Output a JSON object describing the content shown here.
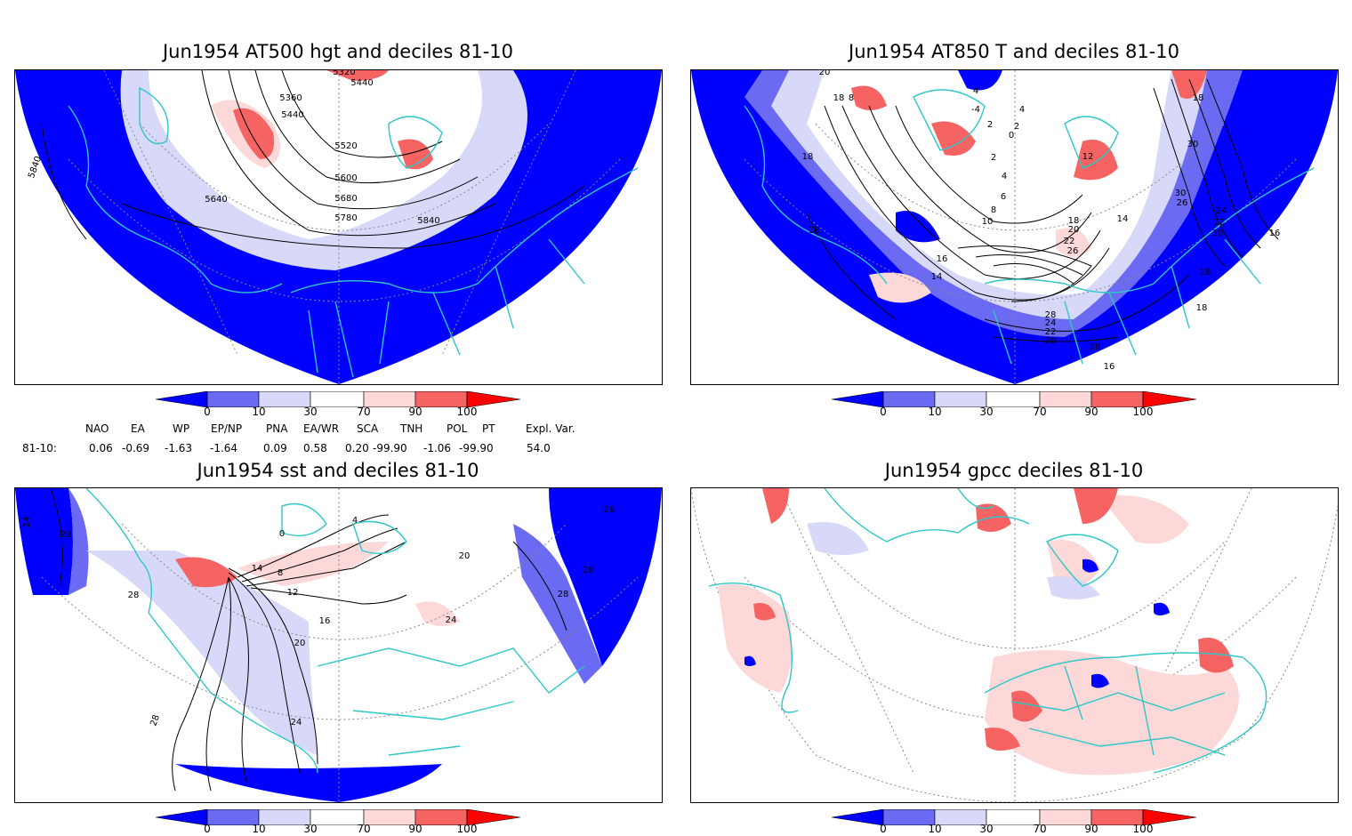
{
  "panels": [
    {
      "title": "Jun1954 AT500 hgt and deciles 81-10",
      "contour_labels": [
        "5320",
        "5360",
        "5440",
        "5440",
        "5520",
        "5600",
        "5680",
        "5780",
        "5640",
        "5840",
        "5840"
      ]
    },
    {
      "title": "Jun1954 AT850 T and deciles 81-10",
      "contour_labels": [
        "20",
        "18",
        "8",
        "18",
        "4",
        "-4",
        "4",
        "2",
        "2",
        "0",
        "2",
        "4",
        "6",
        "8",
        "10",
        "12",
        "14",
        "18",
        "16",
        "14",
        "18",
        "20",
        "22",
        "26",
        "28",
        "24",
        "22",
        "20",
        "18",
        "16",
        "18",
        "30",
        "30",
        "26",
        "24",
        "22",
        "30",
        "16",
        "18",
        "18"
      ]
    },
    {
      "title": "Jun1954 sst and deciles 81-10",
      "contour_labels": [
        "24",
        "28",
        "28",
        "0",
        "4",
        "8",
        "12",
        "14",
        "16",
        "20",
        "24",
        "28",
        "24",
        "20",
        "28",
        "28",
        "28"
      ]
    },
    {
      "title": "Jun1954 gpcc deciles 81-10",
      "contour_labels": []
    }
  ],
  "colorbar": {
    "ticks": [
      "0",
      "10",
      "30",
      "70",
      "90",
      "100"
    ],
    "colors": {
      "c0": "#0000ff",
      "c1": "#6a6af2",
      "c2": "#d8d8f8",
      "c3": "#ffffff",
      "c4": "#fcd8d8",
      "c5": "#f56363",
      "c6": "#ff0000"
    }
  },
  "teleconnections": {
    "headers": [
      "NAO",
      "EA",
      "WP",
      "EP/NP",
      "PNA",
      "EA/WR",
      "SCA",
      "TNH",
      "POL",
      "PT",
      "Expl. Var."
    ],
    "row_label": "81-10:",
    "values": [
      "0.06",
      "-0.69",
      "-1.63",
      "-1.64",
      "0.09",
      "0.58",
      "0.20",
      "-99.90",
      "-1.06",
      "-99.90",
      "54.0"
    ]
  },
  "colors": {
    "coast": "#2ec7c7",
    "contour": "#000000",
    "grid": "#888888"
  }
}
